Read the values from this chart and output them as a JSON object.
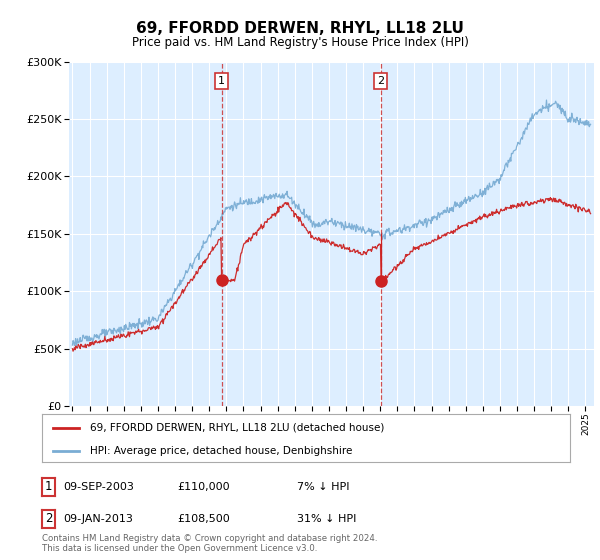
{
  "title": "69, FFORDD DERWEN, RHYL, LL18 2LU",
  "subtitle": "Price paid vs. HM Land Registry's House Price Index (HPI)",
  "legend_line1": "69, FFORDD DERWEN, RHYL, LL18 2LU (detached house)",
  "legend_line2": "HPI: Average price, detached house, Denbighshire",
  "table_rows": [
    {
      "num": "1",
      "date": "09-SEP-2003",
      "price": "£110,000",
      "pct": "7% ↓ HPI"
    },
    {
      "num": "2",
      "date": "09-JAN-2013",
      "price": "£108,500",
      "pct": "31% ↓ HPI"
    }
  ],
  "footer": "Contains HM Land Registry data © Crown copyright and database right 2024.\nThis data is licensed under the Open Government Licence v3.0.",
  "sale1_date": 2003.72,
  "sale1_price": 110000,
  "sale2_date": 2013.03,
  "sale2_price": 108500,
  "sale2_pre_price": 150000,
  "hpi_color": "#7aadd4",
  "price_color": "#cc2222",
  "dashed_color": "#cc3333",
  "shade_color": "#ddeeff",
  "background_color": "#ddeeff",
  "plot_bg": "#ddeeff",
  "ylim": [
    0,
    300000
  ],
  "xlim_start": 1994.8,
  "xlim_end": 2025.5
}
